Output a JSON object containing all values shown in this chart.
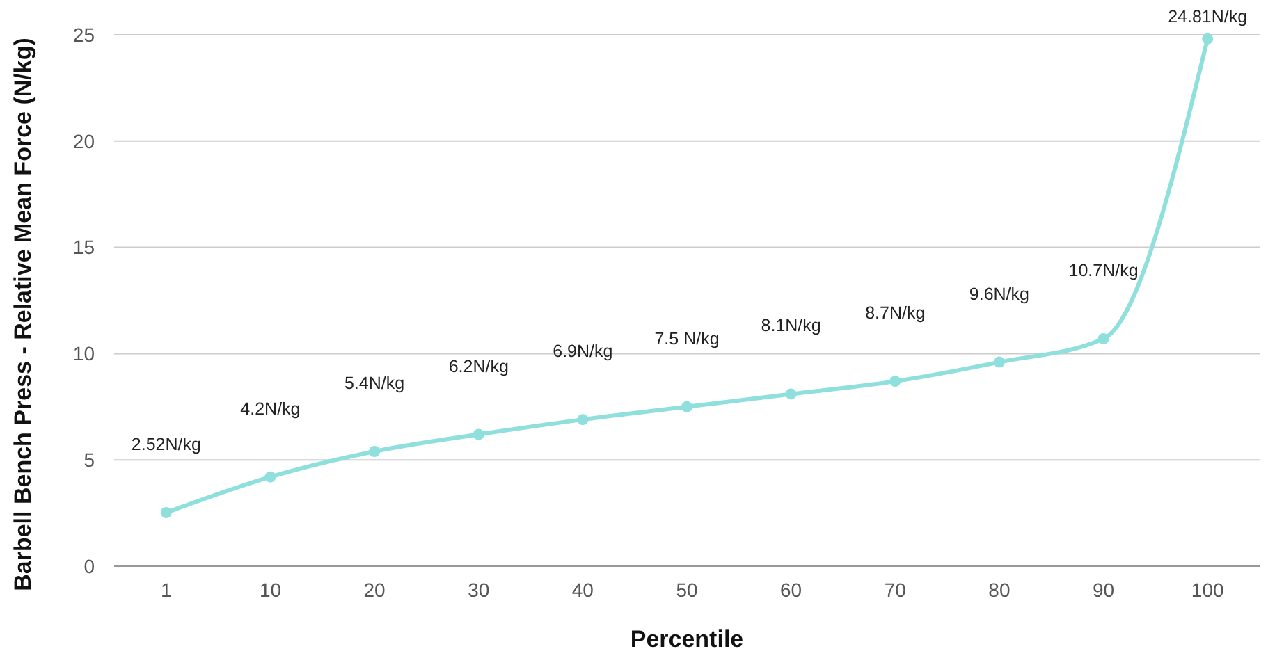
{
  "chart_data": {
    "type": "line",
    "xlabel": "Percentile",
    "ylabel": "Barbell Bench Press - Relative Mean Force (N/kg)",
    "categories": [
      "1",
      "10",
      "20",
      "30",
      "40",
      "50",
      "60",
      "70",
      "80",
      "90",
      "100"
    ],
    "series": [
      {
        "color": "#8fe0dc",
        "values": [
          2.52,
          4.2,
          5.4,
          6.2,
          6.9,
          7.5,
          8.1,
          8.7,
          9.6,
          10.7,
          24.81
        ],
        "value_labels": [
          "2.52N/kg",
          "4.2N/kg",
          "5.4N/kg",
          "6.2N/kg",
          "6.9N/kg",
          "7.5 N/kg",
          "8.1N/kg",
          "8.7N/kg",
          "9.6N/kg",
          "10.7N/kg",
          "24.81N/kg"
        ]
      }
    ],
    "ylim": [
      0,
      25
    ],
    "yticks": [
      0,
      5,
      10,
      15,
      20,
      25
    ],
    "grid": "y",
    "marker": "circle",
    "line_style": "solid"
  }
}
